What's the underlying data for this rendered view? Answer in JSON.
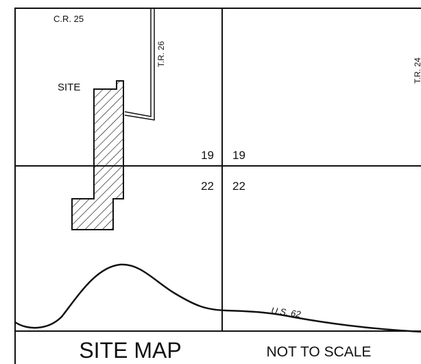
{
  "roads": {
    "county_road": "C.R. 25",
    "township_road_west": "T.R. 26",
    "township_road_east": "T.R. 24",
    "highway": "U.S. 62"
  },
  "site_label": "SITE",
  "sections": {
    "northwest": "19",
    "northeast": "19",
    "southwest": "22",
    "southeast": "22"
  },
  "footer": {
    "title": "SITE MAP",
    "scale_note": "NOT TO SCALE"
  }
}
